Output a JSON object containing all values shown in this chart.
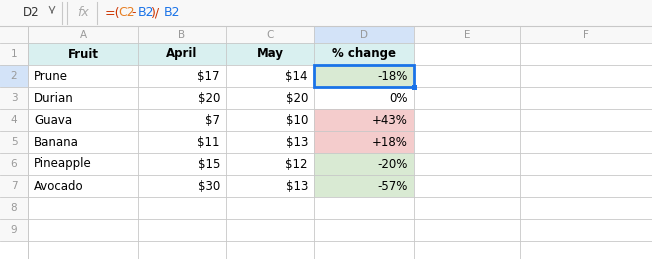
{
  "formula_bar_cell": "D2",
  "formula_bar_formula": "=(C2-B2)/B2",
  "col_letters": [
    "",
    "A",
    "B",
    "C",
    "D",
    "E",
    "F"
  ],
  "headers": [
    "Fruit",
    "April",
    "May",
    "% change"
  ],
  "data": [
    [
      "Prune",
      "$17",
      "$14",
      "-18%"
    ],
    [
      "Durian",
      "$20",
      "$20",
      "0%"
    ],
    [
      "Guava",
      "$7",
      "$10",
      "+43%"
    ],
    [
      "Banana",
      "$11",
      "$13",
      "+18%"
    ],
    [
      "Pineapple",
      "$15",
      "$12",
      "-20%"
    ],
    [
      "Avocado",
      "$30",
      "$13",
      "-57%"
    ]
  ],
  "col_aligns": [
    "left",
    "right",
    "right",
    "right"
  ],
  "header_bg": "#d9f0f0",
  "cell_bg_default": "#ffffff",
  "cell_bg_green": "#d9ead3",
  "cell_bg_pink": "#f4cccc",
  "selected_cell_border": "#1a73e8",
  "grid_color": "#c8c8c8",
  "row_num_color": "#999999",
  "col_letter_color": "#999999",
  "data_text_color": "#000000",
  "header_text_color": "#000000",
  "formula_bar_bg": "#f8f8f8",
  "col_hdr_bg": "#f8f8f8",
  "col_hdr_sel_bg": "#d3e3f8",
  "row_sel_bg": "#d3e3f8",
  "fig_width": 6.52,
  "fig_height": 2.59,
  "cell_d_colors": [
    "#d9ead3",
    "#ffffff",
    "#f4cccc",
    "#f4cccc",
    "#d9ead3",
    "#d9ead3"
  ],
  "formula_parts": [
    [
      "=(",
      "#cc3300"
    ],
    [
      "C2",
      "#e67e22"
    ],
    [
      "-",
      "#cc3300"
    ],
    [
      "B2",
      "#1a73e8"
    ],
    [
      ")/",
      "#cc3300"
    ],
    [
      "B2",
      "#1a73e8"
    ]
  ]
}
